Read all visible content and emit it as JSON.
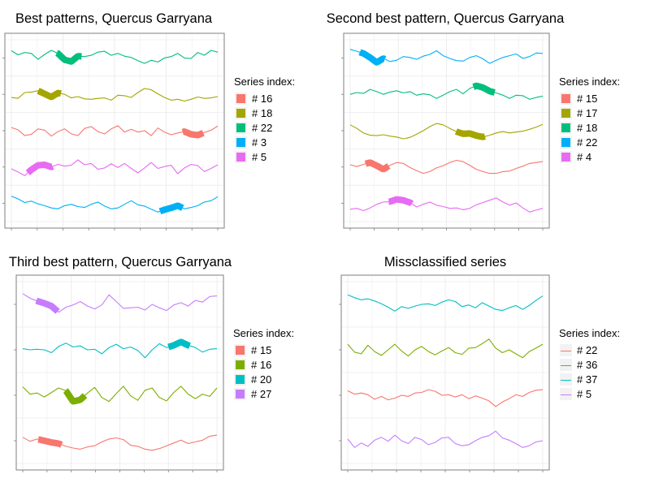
{
  "chart_data": [
    {
      "type": "line",
      "title": "Best patterns, Quercus Garryana",
      "legend_title": "Series index:",
      "legend_position": "right",
      "style": "highlighted",
      "grid": true,
      "series": [
        {
          "name": "# 16",
          "color": "#f8766d",
          "y": [
            0.64,
            0.54,
            0.28,
            0.34,
            0.58,
            0.52,
            0.26,
            0.46,
            0.58,
            0.36,
            0.28,
            0.6,
            0.68,
            0.46,
            0.36,
            0.58,
            0.72,
            0.44,
            0.56,
            0.44,
            0.5,
            0.28,
            0.62,
            0.44,
            0.32,
            0.4,
            0.46,
            0.34,
            0.3,
            0.42,
            0.52,
            0.7
          ],
          "highlight": [
            0.83,
            0.93
          ]
        },
        {
          "name": "# 18",
          "color": "#a3a500",
          "y": [
            0.36,
            0.32,
            0.58,
            0.6,
            0.66,
            0.52,
            0.38,
            0.56,
            0.5,
            0.34,
            0.4,
            0.3,
            0.28,
            0.32,
            0.34,
            0.24,
            0.46,
            0.44,
            0.36,
            0.58,
            0.76,
            0.7,
            0.52,
            0.36,
            0.24,
            0.28,
            0.2,
            0.28,
            0.38,
            0.32,
            0.34,
            0.4
          ],
          "highlight": [
            0.13,
            0.24
          ]
        },
        {
          "name": "# 22",
          "color": "#00bf7d",
          "y": [
            0.82,
            0.64,
            0.74,
            0.7,
            0.44,
            0.66,
            0.84,
            0.7,
            0.42,
            0.34,
            0.58,
            0.56,
            0.62,
            0.76,
            0.8,
            0.62,
            0.7,
            0.58,
            0.52,
            0.38,
            0.26,
            0.4,
            0.32,
            0.5,
            0.56,
            0.7,
            0.5,
            0.48,
            0.74,
            0.62,
            0.84,
            0.76
          ],
          "highlight": [
            0.22,
            0.34
          ]
        },
        {
          "name": "# 3",
          "color": "#00b0f6",
          "y": [
            0.82,
            0.7,
            0.54,
            0.6,
            0.48,
            0.4,
            0.3,
            0.26,
            0.4,
            0.46,
            0.36,
            0.32,
            0.46,
            0.56,
            0.38,
            0.26,
            0.3,
            0.46,
            0.62,
            0.44,
            0.38,
            0.24,
            0.12,
            0.22,
            0.3,
            0.4,
            0.26,
            0.32,
            0.4,
            0.56,
            0.62,
            0.8
          ],
          "highlight": [
            0.72,
            0.83
          ]
        },
        {
          "name": "# 5",
          "color": "#e76bf3",
          "y": [
            0.42,
            0.28,
            0.12,
            0.38,
            0.58,
            0.6,
            0.5,
            0.62,
            0.54,
            0.58,
            0.82,
            0.6,
            0.66,
            0.4,
            0.46,
            0.64,
            0.48,
            0.66,
            0.44,
            0.24,
            0.46,
            0.7,
            0.44,
            0.52,
            0.58,
            0.2,
            0.46,
            0.62,
            0.56,
            0.3,
            0.44,
            0.6
          ],
          "highlight": [
            0.08,
            0.2
          ]
        }
      ]
    },
    {
      "type": "line",
      "title": "Second best pattern, Quercus Garryana",
      "legend_title": "Series index:",
      "legend_position": "right",
      "style": "highlighted",
      "grid": true,
      "series": [
        {
          "name": "# 15",
          "color": "#f8766d",
          "y": [
            0.6,
            0.52,
            0.62,
            0.7,
            0.56,
            0.4,
            0.58,
            0.7,
            0.66,
            0.48,
            0.34,
            0.22,
            0.3,
            0.46,
            0.56,
            0.7,
            0.8,
            0.74,
            0.58,
            0.4,
            0.3,
            0.22,
            0.22,
            0.3,
            0.32,
            0.44,
            0.54,
            0.66,
            0.7,
            0.74
          ],
          "highlight": [
            0.08,
            0.2
          ]
        },
        {
          "name": "# 17",
          "color": "#a3a500",
          "y": [
            0.76,
            0.6,
            0.4,
            0.3,
            0.28,
            0.32,
            0.26,
            0.22,
            0.14,
            0.2,
            0.34,
            0.5,
            0.68,
            0.82,
            0.76,
            0.6,
            0.46,
            0.36,
            0.38,
            0.28,
            0.22,
            0.3,
            0.4,
            0.46,
            0.4,
            0.44,
            0.48,
            0.56,
            0.66,
            0.78
          ],
          "highlight": [
            0.55,
            0.7
          ]
        },
        {
          "name": "# 18",
          "color": "#00bf7d",
          "y": [
            0.5,
            0.58,
            0.54,
            0.72,
            0.62,
            0.5,
            0.6,
            0.66,
            0.56,
            0.62,
            0.46,
            0.52,
            0.48,
            0.32,
            0.46,
            0.62,
            0.72,
            0.52,
            0.76,
            0.88,
            0.8,
            0.64,
            0.56,
            0.46,
            0.32,
            0.46,
            0.44,
            0.28,
            0.36,
            0.42
          ],
          "highlight": [
            0.64,
            0.75
          ]
        },
        {
          "name": "# 22",
          "color": "#00b0f6",
          "y": [
            0.88,
            0.8,
            0.7,
            0.52,
            0.3,
            0.48,
            0.34,
            0.4,
            0.56,
            0.52,
            0.44,
            0.58,
            0.66,
            0.82,
            0.6,
            0.48,
            0.38,
            0.36,
            0.52,
            0.6,
            0.46,
            0.26,
            0.4,
            0.52,
            0.6,
            0.68,
            0.48,
            0.56,
            0.72,
            0.7
          ],
          "highlight": [
            0.05,
            0.18
          ]
        },
        {
          "name": "# 4",
          "color": "#e76bf3",
          "y": [
            0.24,
            0.28,
            0.18,
            0.3,
            0.46,
            0.56,
            0.58,
            0.68,
            0.64,
            0.54,
            0.34,
            0.46,
            0.56,
            0.42,
            0.36,
            0.28,
            0.3,
            0.22,
            0.28,
            0.44,
            0.54,
            0.64,
            0.74,
            0.56,
            0.42,
            0.52,
            0.3,
            0.12,
            0.2,
            0.28
          ],
          "highlight": [
            0.2,
            0.32
          ]
        }
      ]
    },
    {
      "type": "line",
      "title": "Third best pattern, Quercus Garryana",
      "legend_title": "Series index:",
      "legend_position": "right",
      "style": "highlighted",
      "grid": true,
      "series": [
        {
          "name": "# 15",
          "color": "#f8766d",
          "y": [
            0.62,
            0.48,
            0.56,
            0.5,
            0.44,
            0.4,
            0.3,
            0.24,
            0.2,
            0.28,
            0.32,
            0.46,
            0.56,
            0.6,
            0.54,
            0.34,
            0.3,
            0.2,
            0.16,
            0.22,
            0.32,
            0.42,
            0.52,
            0.4,
            0.46,
            0.52,
            0.66,
            0.7
          ],
          "highlight": [
            0.08,
            0.2
          ]
        },
        {
          "name": "# 16",
          "color": "#7cae00",
          "y": [
            0.8,
            0.54,
            0.58,
            0.44,
            0.6,
            0.76,
            0.66,
            0.28,
            0.34,
            0.58,
            0.78,
            0.42,
            0.28,
            0.56,
            0.82,
            0.48,
            0.32,
            0.68,
            0.76,
            0.42,
            0.3,
            0.6,
            0.82,
            0.54,
            0.38,
            0.54,
            0.46,
            0.76
          ],
          "highlight": [
            0.22,
            0.32
          ]
        },
        {
          "name": "# 20",
          "color": "#00bfc4",
          "y": [
            0.54,
            0.5,
            0.52,
            0.5,
            0.4,
            0.62,
            0.74,
            0.6,
            0.64,
            0.5,
            0.52,
            0.36,
            0.58,
            0.7,
            0.54,
            0.6,
            0.48,
            0.22,
            0.5,
            0.72,
            0.58,
            0.66,
            0.78,
            0.66,
            0.58,
            0.42,
            0.52,
            0.54
          ],
          "highlight": [
            0.75,
            0.86
          ]
        },
        {
          "name": "# 27",
          "color": "#c77cff",
          "y": [
            0.88,
            0.72,
            0.62,
            0.54,
            0.44,
            0.22,
            0.4,
            0.48,
            0.6,
            0.44,
            0.34,
            0.48,
            0.84,
            0.6,
            0.36,
            0.38,
            0.4,
            0.3,
            0.5,
            0.38,
            0.28,
            0.48,
            0.56,
            0.44,
            0.64,
            0.58,
            0.78,
            0.8
          ],
          "highlight": [
            0.07,
            0.18
          ]
        }
      ]
    },
    {
      "type": "line",
      "title": "Missclassified series",
      "legend_title": "Series index:",
      "legend_position": "right",
      "style": "plain",
      "grid": true,
      "series": [
        {
          "name": "# 22",
          "color": "#f8766d",
          "y": [
            0.66,
            0.54,
            0.58,
            0.52,
            0.36,
            0.46,
            0.34,
            0.4,
            0.5,
            0.46,
            0.58,
            0.6,
            0.7,
            0.64,
            0.5,
            0.52,
            0.44,
            0.52,
            0.38,
            0.48,
            0.4,
            0.3,
            0.1,
            0.26,
            0.38,
            0.52,
            0.46,
            0.6,
            0.68,
            0.7
          ],
          "highlight": []
        },
        {
          "name": "# 36",
          "color": "#7cae00",
          "y": [
            0.7,
            0.42,
            0.36,
            0.66,
            0.44,
            0.3,
            0.5,
            0.7,
            0.46,
            0.28,
            0.5,
            0.62,
            0.44,
            0.32,
            0.46,
            0.58,
            0.4,
            0.34,
            0.56,
            0.58,
            0.72,
            0.88,
            0.56,
            0.4,
            0.5,
            0.36,
            0.22,
            0.44,
            0.56,
            0.7
          ],
          "highlight": []
        },
        {
          "name": "# 37",
          "color": "#00bfc4",
          "y": [
            0.84,
            0.74,
            0.66,
            0.7,
            0.62,
            0.52,
            0.4,
            0.26,
            0.42,
            0.36,
            0.44,
            0.5,
            0.52,
            0.46,
            0.58,
            0.66,
            0.6,
            0.42,
            0.48,
            0.38,
            0.56,
            0.44,
            0.32,
            0.28,
            0.38,
            0.46,
            0.32,
            0.46,
            0.64,
            0.8
          ],
          "highlight": []
        },
        {
          "name": "# 5",
          "color": "#c77cff",
          "y": [
            0.56,
            0.26,
            0.42,
            0.3,
            0.52,
            0.62,
            0.48,
            0.7,
            0.5,
            0.4,
            0.62,
            0.54,
            0.36,
            0.44,
            0.6,
            0.62,
            0.4,
            0.32,
            0.36,
            0.5,
            0.62,
            0.68,
            0.84,
            0.6,
            0.52,
            0.4,
            0.26,
            0.32,
            0.46,
            0.5
          ],
          "highlight": []
        }
      ]
    }
  ]
}
